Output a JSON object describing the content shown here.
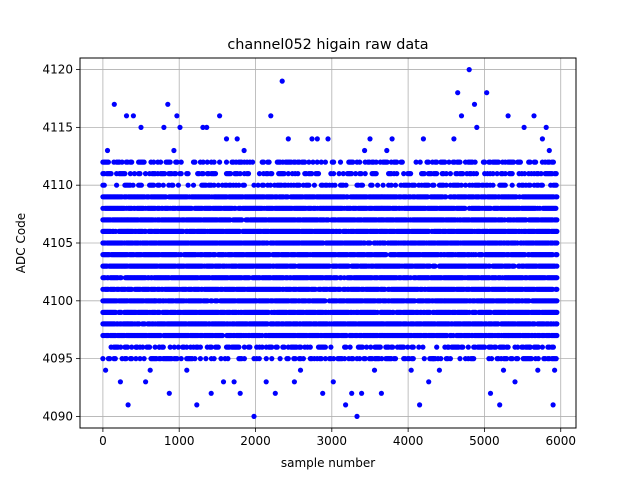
{
  "chart_data": {
    "type": "scatter",
    "title": "channel052 higain raw data",
    "xlabel": "sample number",
    "ylabel": "ADC Code",
    "xlim": [
      -300,
      6200
    ],
    "ylim": [
      4089,
      4121
    ],
    "xticks": [
      0,
      1000,
      2000,
      3000,
      4000,
      5000,
      6000
    ],
    "yticks": [
      4090,
      4095,
      4100,
      4105,
      4110,
      4115,
      4120
    ],
    "grid": true,
    "marker": "filled circle",
    "color": "#0000ff",
    "series": [
      {
        "x": [
          0,
          35,
          60,
          150,
          230,
          310,
          330,
          400,
          440,
          500,
          560,
          620,
          680,
          740,
          800,
          850,
          870,
          930,
          970,
          1010,
          1100,
          1150,
          1230,
          1310,
          1360,
          1420,
          1530,
          1580,
          1620,
          1720,
          1760,
          1800,
          1850,
          1980,
          2050,
          2140,
          2200,
          2260,
          2350,
          2430,
          2510,
          2590,
          2740,
          2810,
          2880,
          2950,
          3020,
          3180,
          3260,
          3330,
          3390,
          3430,
          3500,
          3560,
          3650,
          3720,
          3790,
          3860,
          4040,
          4150,
          4200,
          4270,
          4330,
          4410,
          4470,
          4530,
          4600,
          4650,
          4700,
          4800,
          4870,
          4900,
          4960,
          5030,
          5080,
          5200,
          5250,
          5310,
          5400,
          5520,
          5600,
          5650,
          5700,
          5760,
          5810,
          5850,
          5900,
          5920
        ],
        "y": [
          4110,
          4094,
          4113,
          4117,
          4093,
          4116,
          4091,
          4116,
          4096,
          4115,
          4093,
          4094,
          4100,
          4096,
          4115,
          4117,
          4092,
          4113,
          4116,
          4115,
          4094,
          4096,
          4091,
          4115,
          4115,
          4092,
          4116,
          4093,
          4114,
          4093,
          4114,
          4092,
          4113,
          4090,
          4095,
          4093,
          4116,
          4092,
          4119,
          4114,
          4093,
          4094,
          4114,
          4114,
          4092,
          4114,
          4093,
          4091,
          4092,
          4090,
          4092,
          4113,
          4114,
          4094,
          4092,
          4113,
          4114,
          4096,
          4094,
          4091,
          4114,
          4093,
          4095,
          4094,
          4100,
          4096,
          4114,
          4118,
          4116,
          4120,
          4117,
          4115,
          4100,
          4118,
          4092,
          4091,
          4094,
          4116,
          4093,
          4115,
          4096,
          4116,
          4094,
          4114,
          4115,
          4113,
          4091,
          4094
        ]
      }
    ],
    "dense_band": {
      "x_range": [
        0,
        5950
      ],
      "levels": [
        4097,
        4098,
        4099,
        4100,
        4101,
        4102,
        4103,
        4104,
        4105,
        4106,
        4107,
        4108,
        4109
      ],
      "sparse_levels": [
        4095,
        4096,
        4110,
        4111,
        4112
      ]
    }
  }
}
